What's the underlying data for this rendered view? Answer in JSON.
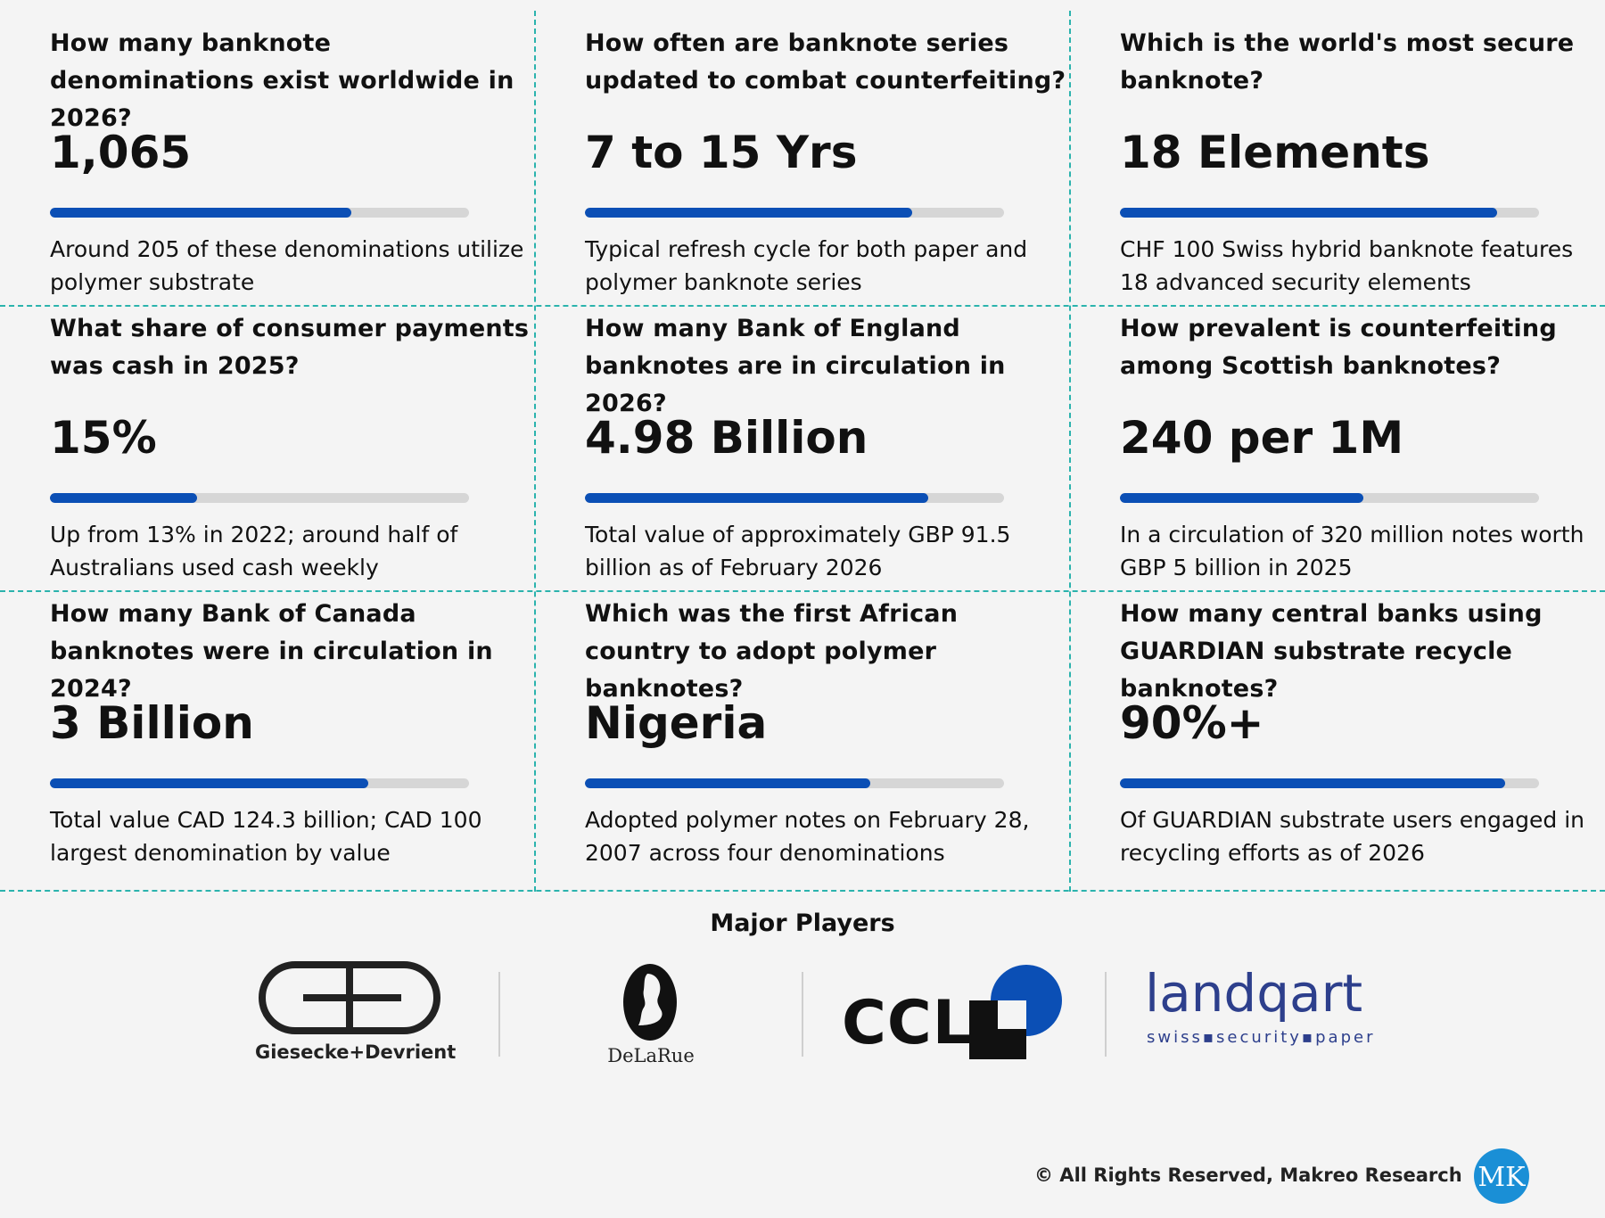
{
  "cards": [
    {
      "question": "How many banknote denominations exist worldwide in 2026?",
      "value": "1,065",
      "bar_fraction": 0.72,
      "description": "Around 205 of these denominations utilize polymer substrate"
    },
    {
      "question": "How often are banknote series updated to combat counterfeiting?",
      "value": "7 to 15 Yrs",
      "bar_fraction": 0.78,
      "description": "Typical refresh cycle for both paper and polymer banknote series"
    },
    {
      "question": "Which is the world's most secure banknote?",
      "value": "18 Elements",
      "bar_fraction": 0.9,
      "description": "CHF 100 Swiss hybrid banknote features 18 advanced security elements"
    },
    {
      "question": "What share of consumer payments was cash in 2025?",
      "value": "15%",
      "bar_fraction": 0.35,
      "description": "Up from 13% in 2022; around half of Australians used cash weekly"
    },
    {
      "question": "How many Bank of England banknotes are in circulation in 2026?",
      "value": "4.98 Billion",
      "bar_fraction": 0.82,
      "description": "Total value of approximately GBP 91.5 billion as of February 2026"
    },
    {
      "question": "How prevalent is counterfeiting among Scottish banknotes?",
      "value": "240 per 1M",
      "bar_fraction": 0.58,
      "description": "In a circulation of 320 million notes worth GBP 5 billion in 2025"
    },
    {
      "question": "How many Bank of Canada banknotes were in circulation in 2024?",
      "value": "3 Billion",
      "bar_fraction": 0.76,
      "description": "Total value CAD 124.3 billion; CAD 100 largest denomination by value"
    },
    {
      "question": "Which was the first African country to adopt polymer banknotes?",
      "value": "Nigeria",
      "bar_fraction": 0.68,
      "description": "Adopted polymer notes on February 28, 2007 across four denominations"
    },
    {
      "question": "How many central banks using GUARDIAN substrate recycle banknotes?",
      "value": "90%+",
      "bar_fraction": 0.92,
      "description": "Of GUARDIAN substrate users engaged in recycling efforts as of 2026"
    }
  ],
  "players": {
    "title": "Major Players",
    "giesecke": "Giesecke+Devrient",
    "delarue": "DeLaRue",
    "ccl": "CCL",
    "landqart_main": "landqart",
    "landqart_sub": "swiss▪security▪paper"
  },
  "footer": "© All Rights Reserved, Makreo Research",
  "footer_logo": "MK",
  "colors": {
    "accent": "#0b4fb5",
    "divider": "#2bb3ad",
    "track": "#d6d6d6"
  }
}
